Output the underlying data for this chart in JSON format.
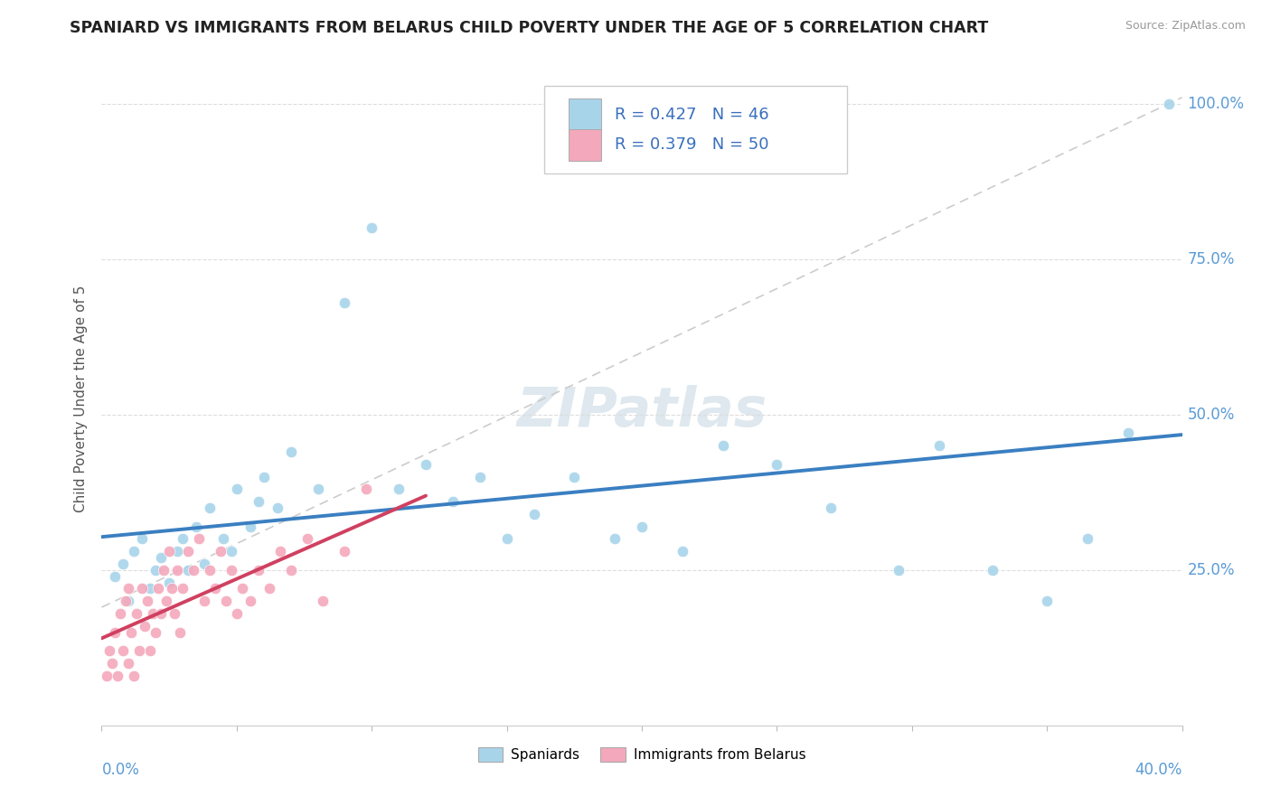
{
  "title": "SPANIARD VS IMMIGRANTS FROM BELARUS CHILD POVERTY UNDER THE AGE OF 5 CORRELATION CHART",
  "source": "Source: ZipAtlas.com",
  "ylabel": "Child Poverty Under the Age of 5",
  "legend_spaniards": "Spaniards",
  "legend_belarus": "Immigrants from Belarus",
  "r_spaniards": 0.427,
  "n_spaniards": 46,
  "r_belarus": 0.379,
  "n_belarus": 50,
  "color_spaniards": "#a8d4ea",
  "color_belarus": "#f4a8bc",
  "color_trendline_spaniards": "#3a7fc1",
  "color_trendline_belarus": "#d04060",
  "color_dashed": "#cccccc",
  "watermark_color": "#d0dfe8",
  "xmin": 0.0,
  "xmax": 0.4,
  "ymin": 0.0,
  "ymax": 1.05,
  "ytick_positions": [
    0.25,
    0.5,
    0.75,
    1.0
  ],
  "ytick_labels": [
    "25.0%",
    "50.0%",
    "75.0%",
    "100.0%"
  ],
  "spaniards_x": [
    0.005,
    0.008,
    0.01,
    0.012,
    0.015,
    0.018,
    0.02,
    0.022,
    0.025,
    0.028,
    0.03,
    0.032,
    0.035,
    0.038,
    0.04,
    0.045,
    0.048,
    0.05,
    0.055,
    0.058,
    0.06,
    0.065,
    0.07,
    0.08,
    0.09,
    0.1,
    0.11,
    0.12,
    0.13,
    0.14,
    0.15,
    0.16,
    0.175,
    0.19,
    0.2,
    0.215,
    0.23,
    0.25,
    0.27,
    0.295,
    0.31,
    0.33,
    0.35,
    0.365,
    0.38,
    0.395
  ],
  "spaniards_y": [
    0.24,
    0.26,
    0.2,
    0.28,
    0.3,
    0.22,
    0.25,
    0.27,
    0.23,
    0.28,
    0.3,
    0.25,
    0.32,
    0.26,
    0.35,
    0.3,
    0.28,
    0.38,
    0.32,
    0.36,
    0.4,
    0.35,
    0.44,
    0.38,
    0.68,
    0.8,
    0.38,
    0.42,
    0.36,
    0.4,
    0.3,
    0.34,
    0.4,
    0.3,
    0.32,
    0.28,
    0.45,
    0.42,
    0.35,
    0.25,
    0.45,
    0.25,
    0.2,
    0.3,
    0.47,
    1.0
  ],
  "belarus_x": [
    0.002,
    0.003,
    0.004,
    0.005,
    0.006,
    0.007,
    0.008,
    0.009,
    0.01,
    0.01,
    0.011,
    0.012,
    0.013,
    0.014,
    0.015,
    0.016,
    0.017,
    0.018,
    0.019,
    0.02,
    0.021,
    0.022,
    0.023,
    0.024,
    0.025,
    0.026,
    0.027,
    0.028,
    0.029,
    0.03,
    0.032,
    0.034,
    0.036,
    0.038,
    0.04,
    0.042,
    0.044,
    0.046,
    0.048,
    0.05,
    0.052,
    0.055,
    0.058,
    0.062,
    0.066,
    0.07,
    0.076,
    0.082,
    0.09,
    0.098
  ],
  "belarus_y": [
    0.08,
    0.12,
    0.1,
    0.15,
    0.08,
    0.18,
    0.12,
    0.2,
    0.1,
    0.22,
    0.15,
    0.08,
    0.18,
    0.12,
    0.22,
    0.16,
    0.2,
    0.12,
    0.18,
    0.15,
    0.22,
    0.18,
    0.25,
    0.2,
    0.28,
    0.22,
    0.18,
    0.25,
    0.15,
    0.22,
    0.28,
    0.25,
    0.3,
    0.2,
    0.25,
    0.22,
    0.28,
    0.2,
    0.25,
    0.18,
    0.22,
    0.2,
    0.25,
    0.22,
    0.28,
    0.25,
    0.3,
    0.2,
    0.28,
    0.38
  ]
}
